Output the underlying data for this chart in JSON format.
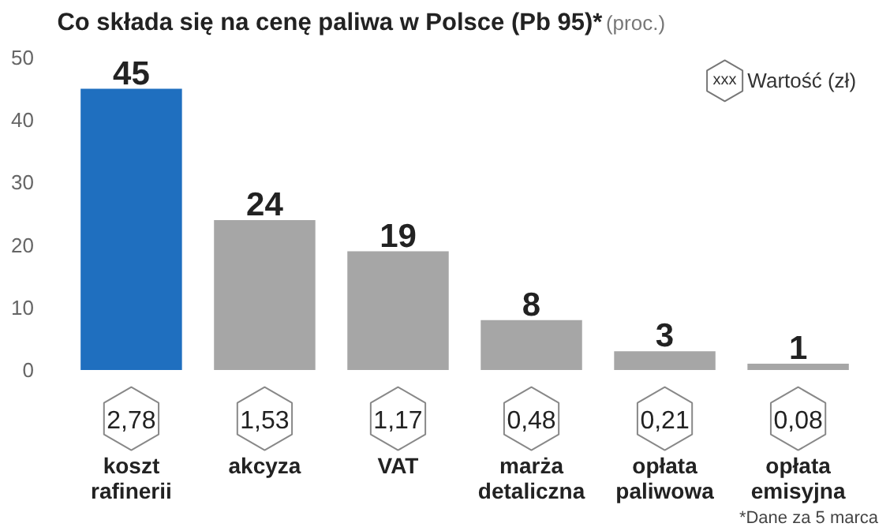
{
  "chart_data": {
    "type": "bar",
    "title": "Co składa się na cenę paliwa w Polsce (Pb 95)*",
    "subtitle": "(proc.)",
    "categories": [
      "koszt rafinerii",
      "akcyza",
      "VAT",
      "marża detaliczna",
      "opłata paliwowa",
      "opłata emisyjna"
    ],
    "values": [
      45,
      24,
      19,
      8,
      3,
      1
    ],
    "colors": [
      "#1f6fbf",
      "#a6a6a6",
      "#a6a6a6",
      "#a6a6a6",
      "#a6a6a6",
      "#a6a6a6"
    ],
    "ylim": [
      0,
      50
    ],
    "yticks": [
      0,
      10,
      20,
      30,
      40,
      50
    ],
    "grid": false,
    "data_labels": true,
    "annotations": [
      "xxx",
      "Wartość (zł)",
      "2,78",
      "1,53",
      "1,17",
      "0,48",
      "0,21",
      "0,08",
      "*Dane za 5 marca"
    ]
  }
}
